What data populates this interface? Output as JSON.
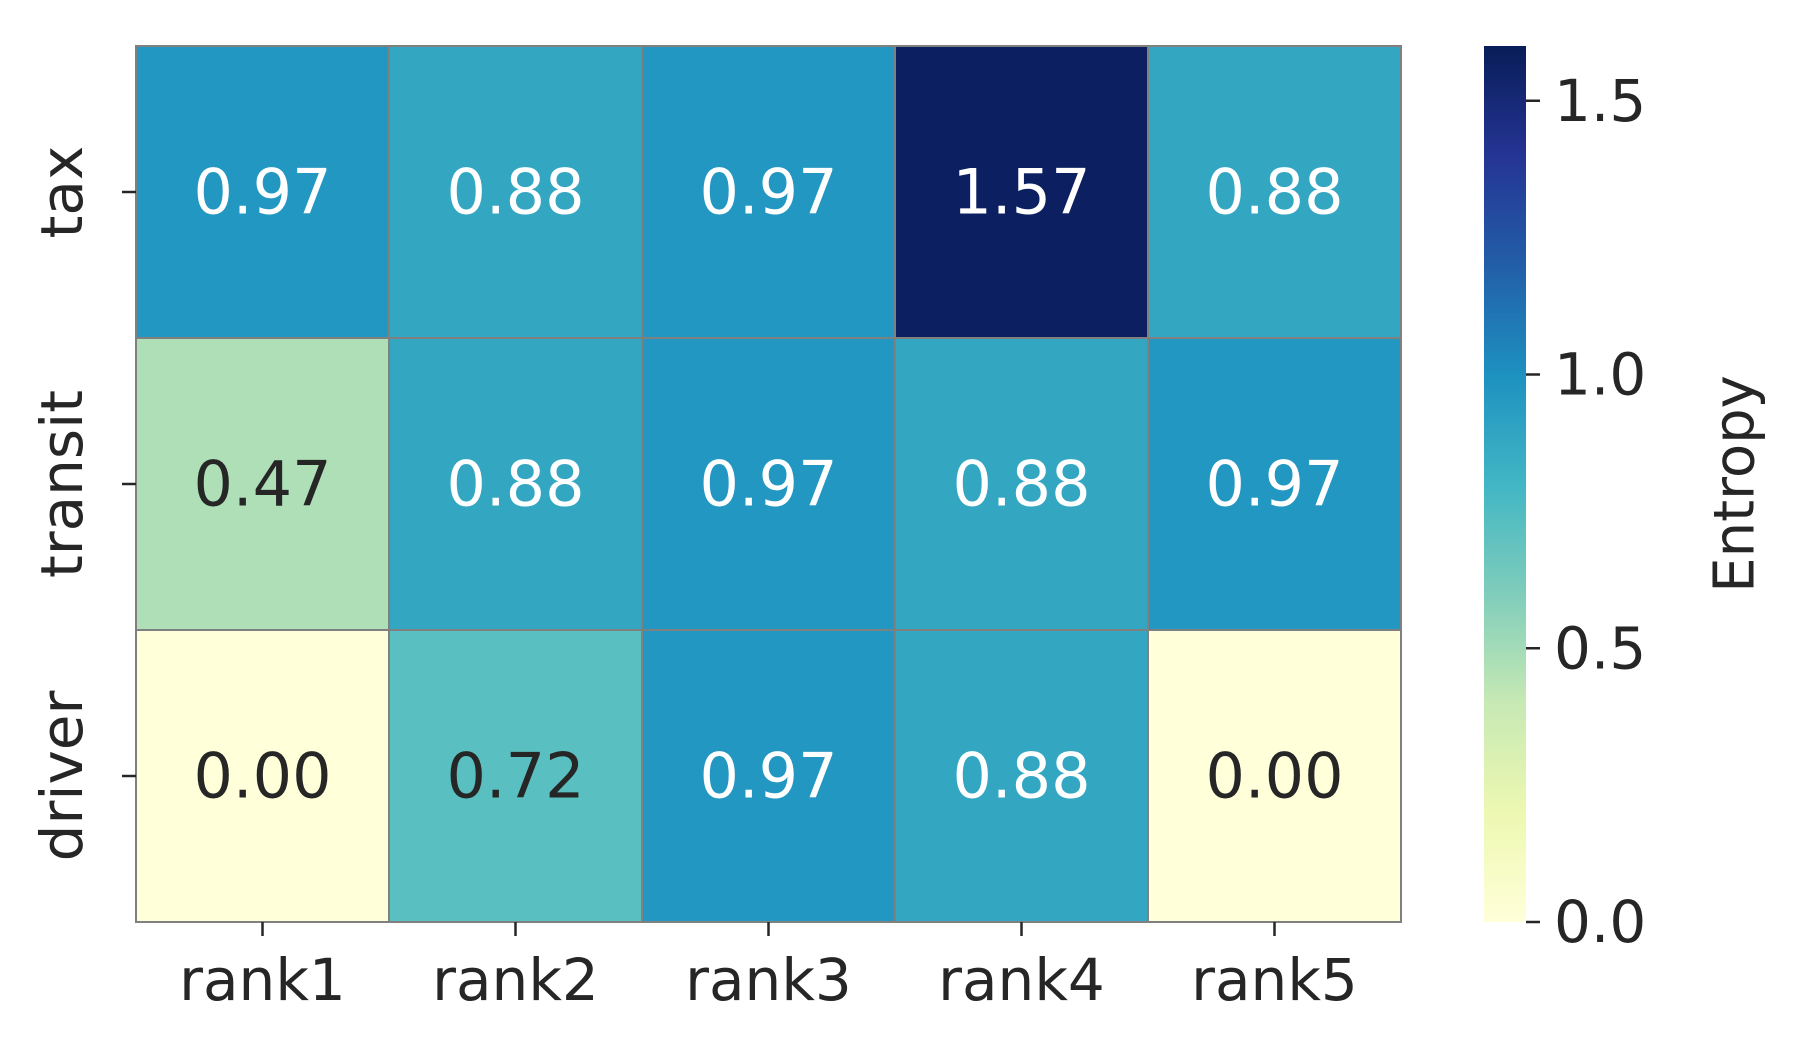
{
  "chart_data": {
    "type": "heatmap",
    "x_categories": [
      "rank1",
      "rank2",
      "rank3",
      "rank4",
      "rank5"
    ],
    "y_categories": [
      "tax",
      "transit",
      "driver"
    ],
    "values": [
      [
        0.97,
        0.88,
        0.97,
        1.57,
        0.88
      ],
      [
        0.47,
        0.88,
        0.97,
        0.88,
        0.97
      ],
      [
        0.0,
        0.72,
        0.97,
        0.88,
        0.0
      ]
    ],
    "cell_labels": [
      [
        "0.97",
        "0.88",
        "0.97",
        "1.57",
        "0.88"
      ],
      [
        "0.47",
        "0.88",
        "0.97",
        "0.88",
        "0.97"
      ],
      [
        "0.00",
        "0.72",
        "0.97",
        "0.88",
        "0.00"
      ]
    ],
    "colorbar": {
      "label": "Entropy",
      "range": [
        0,
        1.6
      ],
      "ticks": [
        0.0,
        0.5,
        1.0,
        1.5
      ],
      "tick_labels": [
        "0.0",
        "0.5",
        "1.0",
        "1.5"
      ],
      "colormap": "YlGnBu"
    },
    "cell_edge_color": "#808080",
    "annotation_light_color": "#ffffff",
    "annotation_dark_color": "#262626"
  }
}
